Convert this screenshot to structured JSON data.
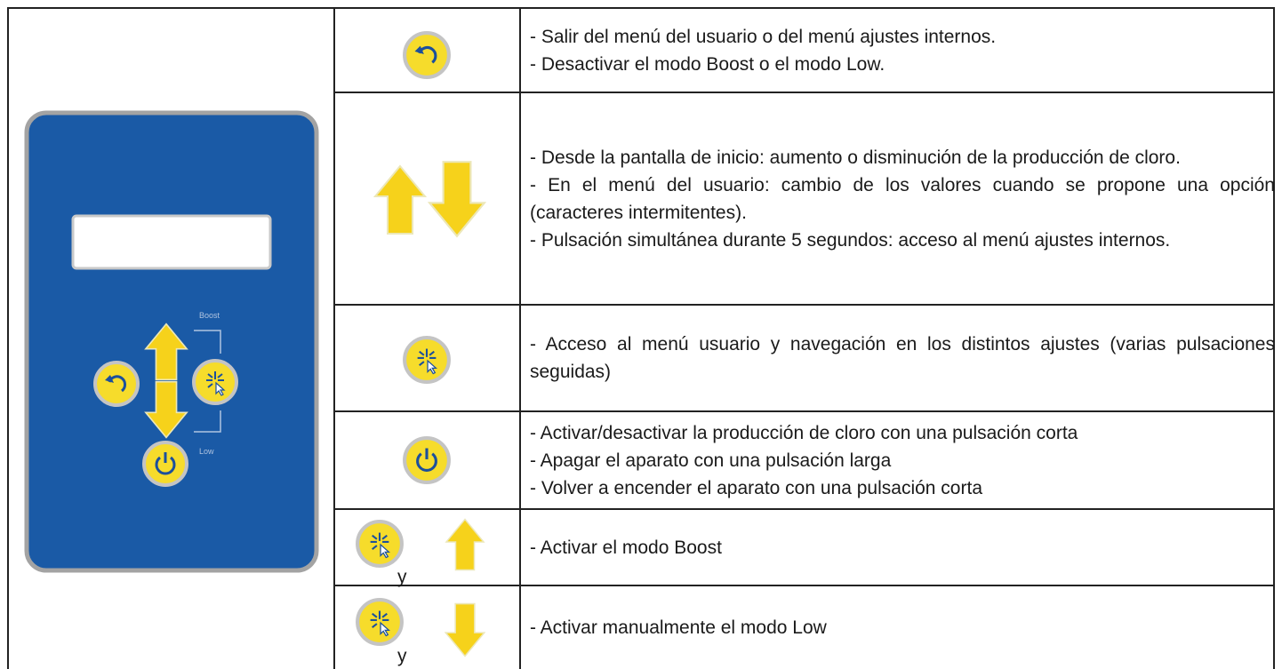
{
  "panel": {
    "boost_label": "Boost",
    "low_label": "Low"
  },
  "rows": [
    {
      "lines": [
        "- Salir del menú del usuario o del menú ajustes internos.",
        "- Desactivar el modo Boost o el modo Low."
      ]
    },
    {
      "lines": [
        "- Desde la pantalla de inicio: aumento o disminución de la producción de cloro.",
        "- En el menú del usuario: cambio de los valores cuando se propone una opción (caracteres intermitentes).",
        "- Pulsación simultánea durante 5 segundos: acceso al menú ajustes internos."
      ]
    },
    {
      "lines": [
        "- Acceso al menú usuario y navegación en los distintos ajustes (varias pulsaciones seguidas)"
      ]
    },
    {
      "lines": [
        "- Activar/desactivar la producción de cloro con una pulsación corta",
        "- Apagar el aparato con una pulsación larga",
        "- Volver a encender el aparato con una pulsación corta"
      ]
    },
    {
      "connector": "y",
      "lines": [
        "- Activar el modo Boost"
      ]
    },
    {
      "connector": "y",
      "lines": [
        "- Activar manualmente el modo Low"
      ]
    }
  ]
}
